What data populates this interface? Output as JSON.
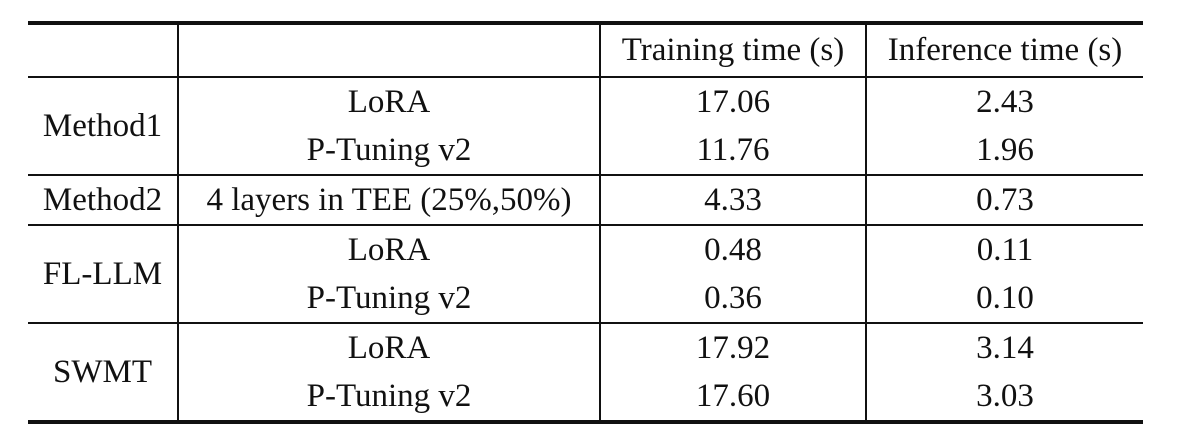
{
  "table": {
    "headers": [
      "",
      "",
      "Training time (s)",
      "Inference time (s)"
    ],
    "groups": [
      {
        "method": "Method1",
        "rows": [
          {
            "setting": "LoRA",
            "training": "17.06",
            "inference": "2.43"
          },
          {
            "setting": "P-Tuning v2",
            "training": "11.76",
            "inference": "1.96"
          }
        ]
      },
      {
        "method": "Method2",
        "rows": [
          {
            "setting": "4 layers in TEE (25%,50%)",
            "training": "4.33",
            "inference": "0.73"
          }
        ]
      },
      {
        "method": "FL-LLM",
        "rows": [
          {
            "setting": "LoRA",
            "training": "0.48",
            "inference": "0.11"
          },
          {
            "setting": "P-Tuning v2",
            "training": "0.36",
            "inference": "0.10"
          }
        ]
      },
      {
        "method": "SWMT",
        "rows": [
          {
            "setting": "LoRA",
            "training": "17.92",
            "inference": "3.14"
          },
          {
            "setting": "P-Tuning v2",
            "training": "17.60",
            "inference": "3.03"
          }
        ]
      }
    ]
  }
}
